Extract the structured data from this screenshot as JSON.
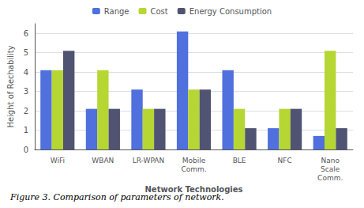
{
  "chart_data": {
    "type": "bar",
    "categories": [
      "WiFi",
      "WBAN",
      "LR-WPAN",
      "Mobile\nComm.",
      "BLE",
      "NFC",
      "Nano\nScale\nComm."
    ],
    "series": [
      {
        "name": "Range",
        "values": [
          4.1,
          2.1,
          3.1,
          6.1,
          4.1,
          1.1,
          0.7
        ]
      },
      {
        "name": "Cost",
        "values": [
          4.1,
          4.1,
          2.1,
          3.1,
          2.1,
          2.1,
          5.1
        ]
      },
      {
        "name": "Energy Consumption",
        "values": [
          5.1,
          2.1,
          2.1,
          3.1,
          1.1,
          2.1,
          1.1
        ]
      }
    ],
    "ylabel": "Height of Rechability",
    "xlabel": "Network Technologies",
    "caption": "Figure 3. Comparison of parameters of network.",
    "ylim": [
      0,
      6.5
    ],
    "yticks": [
      0,
      1,
      2,
      3,
      4,
      5,
      6
    ],
    "grid": true,
    "legend": "top"
  }
}
